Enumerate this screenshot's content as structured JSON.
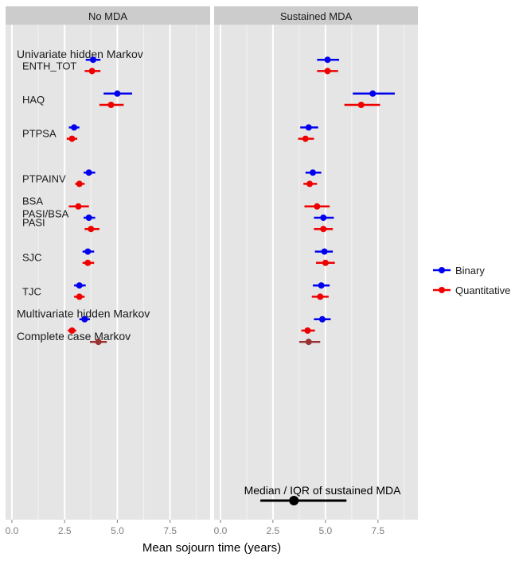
{
  "chart_data": {
    "type": "forest-plot",
    "xlabel": "Mean sojourn time (years)",
    "xlim": [
      -0.3,
      9.4
    ],
    "xticks": [
      0.0,
      2.5,
      5.0,
      7.5
    ],
    "xtick_labels": [
      "0.0",
      "2.5",
      "5.0",
      "7.5"
    ],
    "grid": true,
    "legend_placement": "right",
    "facets": [
      {
        "label": "No MDA"
      },
      {
        "label": "Sustained MDA"
      }
    ],
    "group_labels": [
      {
        "text": "Univariate hidden Markov",
        "style": "heading",
        "slot": 0.5
      },
      {
        "text": "ENTH_TOT",
        "style": "label",
        "slot": 1.5
      },
      {
        "text": "HAQ",
        "style": "label",
        "slot": 4.5
      },
      {
        "text": "PTPSA",
        "style": "label",
        "slot": 7.5
      },
      {
        "text": "PTPAINV",
        "style": "label",
        "slot": 11.5
      },
      {
        "text": "BSA",
        "style": "label",
        "slot": 13.5
      },
      {
        "text": "PASI/BSA",
        "style": "label",
        "slot": 14.6
      },
      {
        "text": "PASI",
        "style": "label",
        "slot": 15.4
      },
      {
        "text": "SJC",
        "style": "label",
        "slot": 18.5
      },
      {
        "text": "TJC",
        "style": "label",
        "slot": 21.5
      },
      {
        "text": "Multivariate hidden Markov",
        "style": "heading",
        "slot": 23.5
      },
      {
        "text": "Complete case Markov",
        "style": "heading",
        "slot": 25.5
      }
    ],
    "series": [
      {
        "name": "Binary",
        "color": "#0000ee"
      },
      {
        "name": "Quantitative",
        "color": "#ee0000"
      },
      {
        "name": "",
        "color": "#993333"
      }
    ],
    "estimates": [
      {
        "slot": 1,
        "series": 0,
        "no_mda": [
          3.85,
          3.5,
          4.2
        ],
        "sustained": [
          5.1,
          4.6,
          5.65
        ]
      },
      {
        "slot": 2,
        "series": 1,
        "no_mda": [
          3.8,
          3.45,
          4.2
        ],
        "sustained": [
          5.1,
          4.6,
          5.6
        ]
      },
      {
        "slot": 4,
        "series": 0,
        "no_mda": [
          5.0,
          4.35,
          5.7
        ],
        "sustained": [
          7.25,
          6.3,
          8.3
        ]
      },
      {
        "slot": 5,
        "series": 1,
        "no_mda": [
          4.7,
          4.15,
          5.3
        ],
        "sustained": [
          6.7,
          5.9,
          7.6
        ]
      },
      {
        "slot": 7,
        "series": 0,
        "no_mda": [
          2.95,
          2.7,
          3.2
        ],
        "sustained": [
          4.2,
          3.8,
          4.65
        ]
      },
      {
        "slot": 8,
        "series": 1,
        "no_mda": [
          2.85,
          2.6,
          3.1
        ],
        "sustained": [
          4.05,
          3.7,
          4.45
        ]
      },
      {
        "slot": 11,
        "series": 0,
        "no_mda": [
          3.65,
          3.4,
          3.95
        ],
        "sustained": [
          4.4,
          4.05,
          4.8
        ]
      },
      {
        "slot": 12,
        "series": 1,
        "no_mda": [
          3.2,
          3.0,
          3.45
        ],
        "sustained": [
          4.25,
          3.95,
          4.6
        ]
      },
      {
        "slot": 14,
        "series": 1,
        "no_mda": [
          3.15,
          2.7,
          3.65
        ],
        "sustained": [
          4.6,
          4.0,
          5.2
        ]
      },
      {
        "slot": 15,
        "series": 0,
        "no_mda": [
          3.65,
          3.4,
          3.95
        ],
        "sustained": [
          4.9,
          4.45,
          5.4
        ]
      },
      {
        "slot": 16,
        "series": 1,
        "no_mda": [
          3.75,
          3.45,
          4.15
        ],
        "sustained": [
          4.9,
          4.45,
          5.35
        ]
      },
      {
        "slot": 18,
        "series": 0,
        "no_mda": [
          3.6,
          3.35,
          3.9
        ],
        "sustained": [
          4.95,
          4.5,
          5.35
        ]
      },
      {
        "slot": 19,
        "series": 1,
        "no_mda": [
          3.6,
          3.35,
          3.9
        ],
        "sustained": [
          5.0,
          4.55,
          5.45
        ]
      },
      {
        "slot": 21,
        "series": 0,
        "no_mda": [
          3.2,
          2.95,
          3.5
        ],
        "sustained": [
          4.8,
          4.4,
          5.2
        ]
      },
      {
        "slot": 22,
        "series": 1,
        "no_mda": [
          3.2,
          2.95,
          3.45
        ],
        "sustained": [
          4.75,
          4.35,
          5.15
        ]
      },
      {
        "slot": 24,
        "series": 0,
        "no_mda": [
          3.45,
          3.2,
          3.7
        ],
        "sustained": [
          4.85,
          4.45,
          5.25
        ]
      },
      {
        "slot": 25,
        "series": 1,
        "no_mda": [
          2.85,
          2.65,
          3.05
        ],
        "sustained": [
          4.15,
          3.85,
          4.5
        ]
      },
      {
        "slot": 26,
        "series": 2,
        "no_mda": [
          4.1,
          3.7,
          4.5
        ],
        "sustained": [
          4.2,
          3.75,
          4.75
        ]
      }
    ],
    "annotation": {
      "text": "Median / IQR of sustained MDA",
      "facet": 1,
      "median": 3.5,
      "iqr": [
        1.9,
        6.0
      ]
    }
  }
}
